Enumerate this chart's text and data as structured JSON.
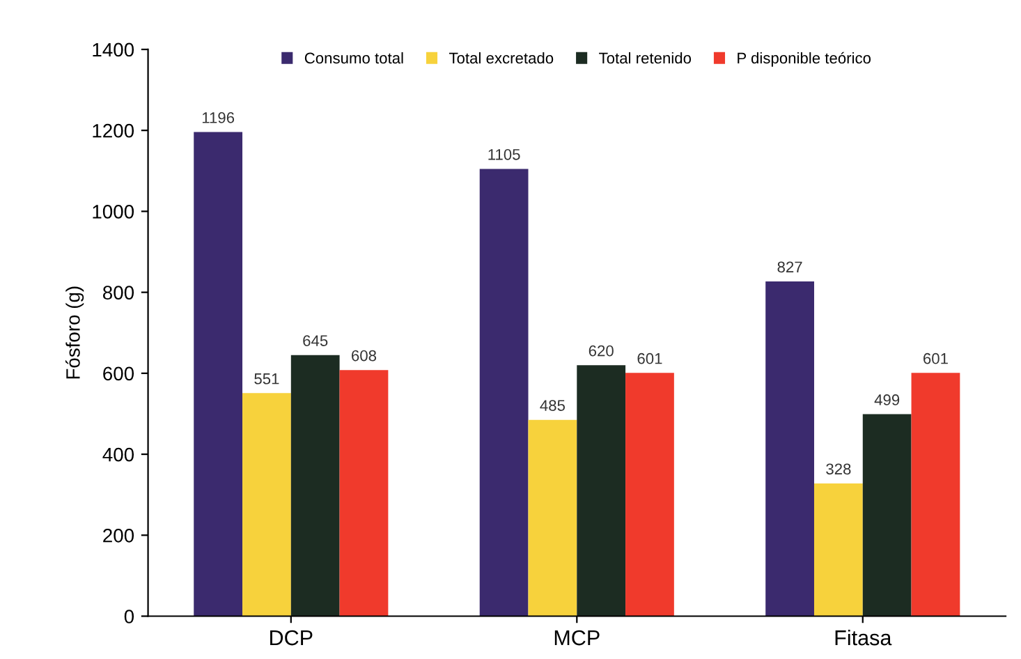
{
  "chart_data": {
    "type": "bar",
    "ylabel": "Fósforo (g)",
    "categories": [
      "DCP",
      "MCP",
      "Fitasa"
    ],
    "series": [
      {
        "name": "Consumo total",
        "color": "#3b2a6e",
        "values": [
          1196,
          1105,
          827
        ]
      },
      {
        "name": "Total excretado",
        "color": "#f7d23c",
        "values": [
          551,
          485,
          328
        ]
      },
      {
        "name": "Total retenido",
        "color": "#1c2c22",
        "values": [
          645,
          620,
          499
        ]
      },
      {
        "name": "P disponible teórico",
        "color": "#f03a2c",
        "values": [
          608,
          601,
          601
        ]
      }
    ],
    "ylim": [
      0,
      1400
    ],
    "yticks": [
      0,
      200,
      400,
      600,
      800,
      1000,
      1200,
      1400
    ],
    "data_labels": true,
    "legend": "top",
    "grid": false
  }
}
